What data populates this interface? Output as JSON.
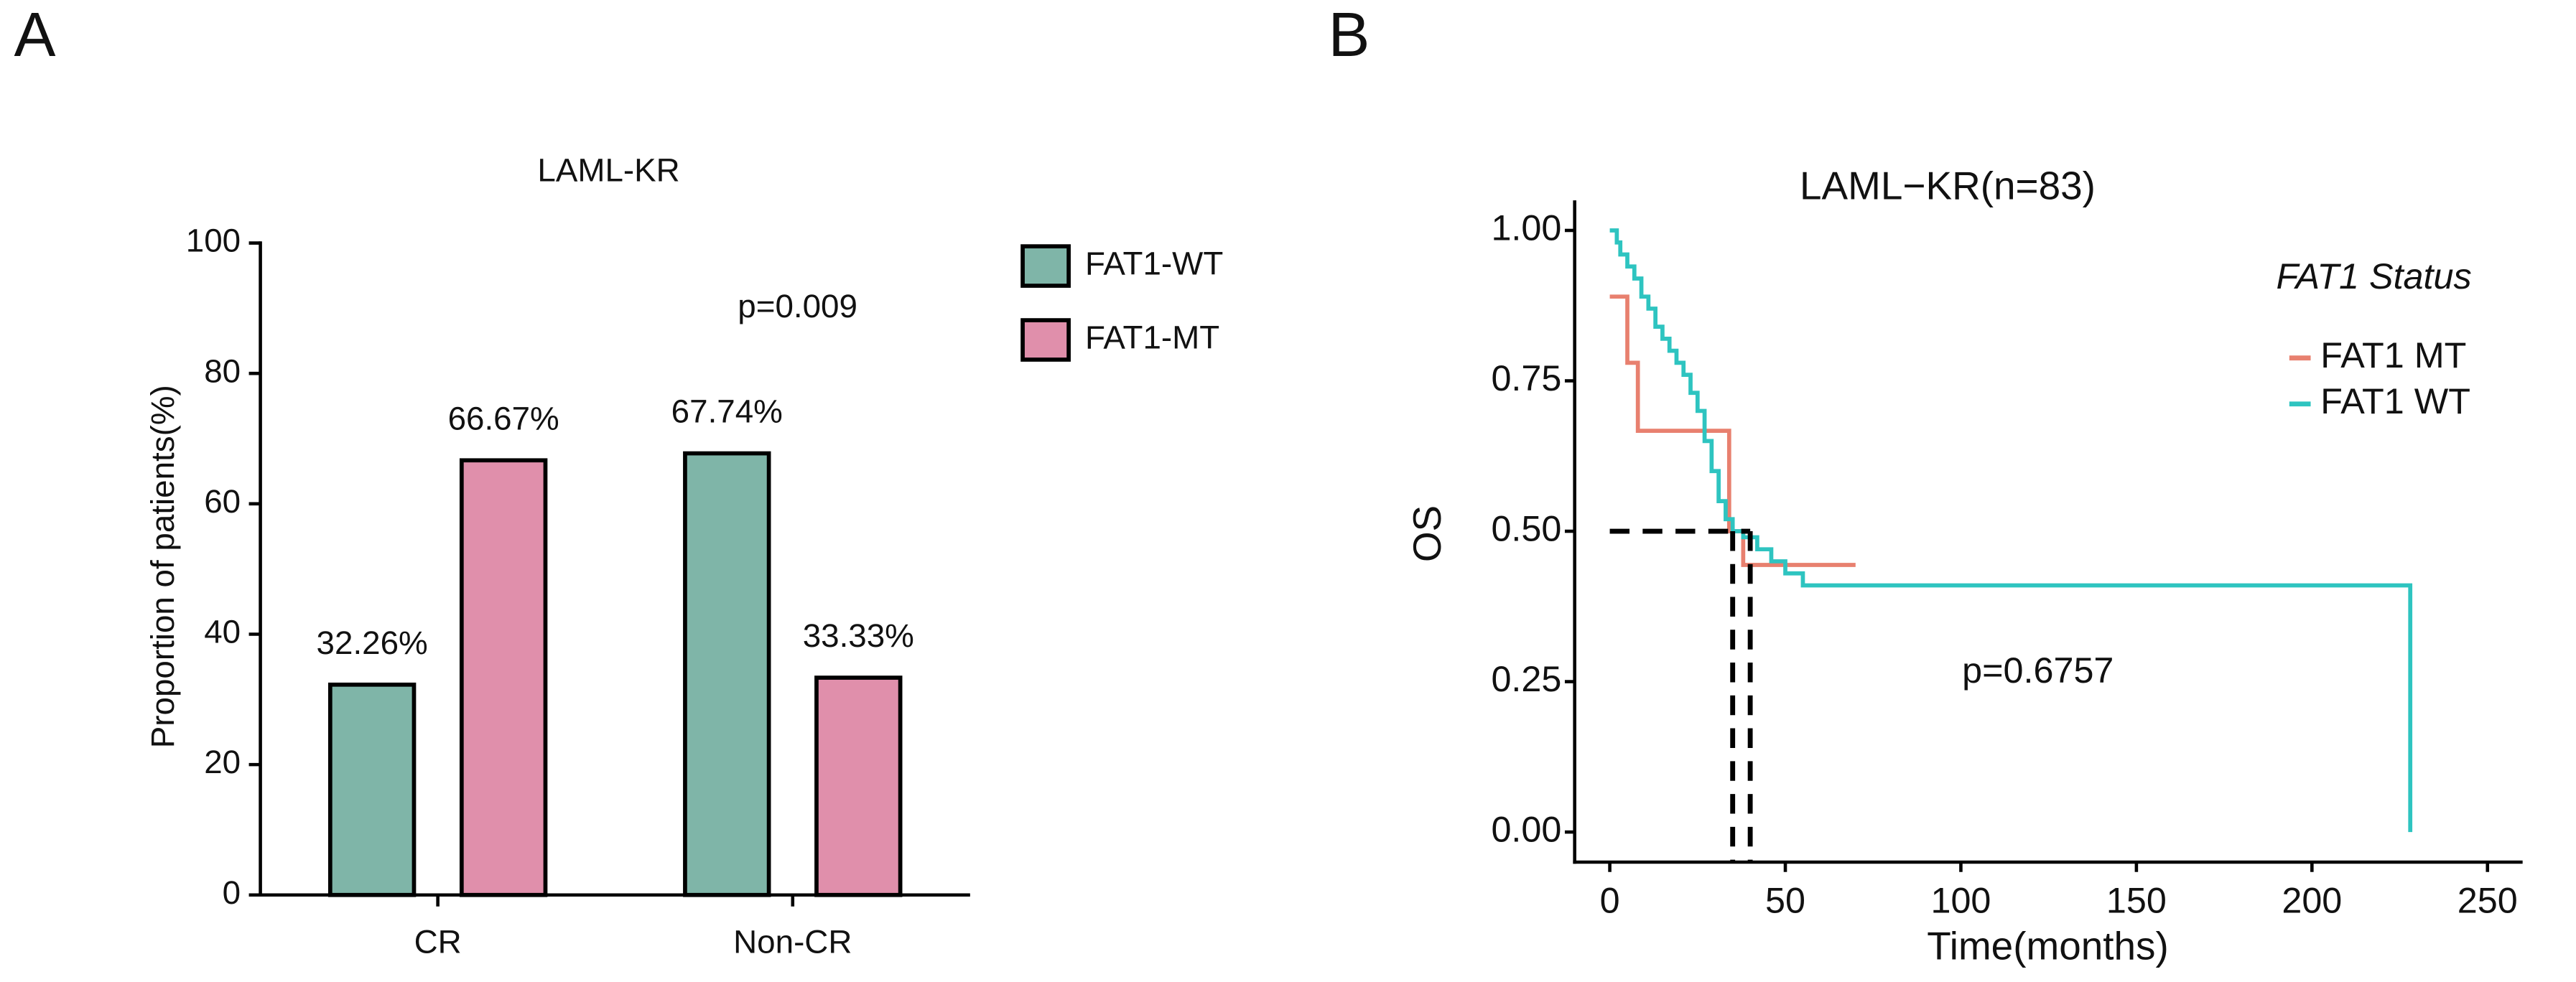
{
  "panels": [
    "A",
    "B"
  ],
  "chart_data": [
    {
      "type": "bar",
      "title": "LAML-KR",
      "categories": [
        "CR",
        "Non-CR"
      ],
      "series": [
        {
          "name": "FAT1-WT",
          "color": "#7fb5a8",
          "values": [
            32.26,
            67.74
          ],
          "value_labels": [
            "32.26%",
            "67.74%"
          ]
        },
        {
          "name": "FAT1-MT",
          "color": "#e08fab",
          "values": [
            66.67,
            33.33
          ],
          "value_labels": [
            "66.67%",
            "33.33%"
          ]
        }
      ],
      "ylabel": "Proportion of patients(%)",
      "ylim": [
        0,
        100
      ],
      "yticks": [
        0,
        20,
        40,
        60,
        80,
        100
      ],
      "annotation": "p=0.009"
    },
    {
      "type": "line",
      "title": "LAML−KR(n=83)",
      "xlabel": "Time(months)",
      "ylabel": "OS",
      "xlim": [
        -10,
        260
      ],
      "xticks": [
        0,
        50,
        100,
        150,
        200,
        250
      ],
      "ylim": [
        -0.05,
        1.05
      ],
      "yticks": [
        {
          "value": 0,
          "label": "0.00"
        },
        {
          "value": 0.25,
          "label": "0.25"
        },
        {
          "value": 0.5,
          "label": "0.50"
        },
        {
          "value": 0.75,
          "label": "0.75"
        },
        {
          "value": 1,
          "label": "1.00"
        }
      ],
      "legend_title": "FAT1 Status",
      "series": [
        {
          "name": "FAT1 MT",
          "color": "#e8806f",
          "x": [
            0,
            5,
            8,
            34,
            38,
            70
          ],
          "values": [
            0.89,
            0.78,
            0.667,
            0.5,
            0.444,
            0.444
          ]
        },
        {
          "name": "FAT1 WT",
          "color": "#2ec4c0",
          "x": [
            0,
            2,
            3,
            5,
            7,
            9,
            11,
            13,
            15,
            17,
            19,
            21,
            23,
            25,
            27,
            29,
            31,
            33,
            35,
            38,
            42,
            46,
            50,
            55,
            228
          ],
          "values": [
            1.0,
            0.98,
            0.96,
            0.94,
            0.92,
            0.89,
            0.87,
            0.84,
            0.82,
            0.8,
            0.78,
            0.76,
            0.73,
            0.7,
            0.65,
            0.6,
            0.55,
            0.52,
            0.5,
            0.49,
            0.47,
            0.45,
            0.43,
            0.41,
            0.0
          ]
        }
      ],
      "median_y": 0.5,
      "median_x": [
        35,
        40
      ],
      "annotation": "p=0.6757"
    }
  ]
}
